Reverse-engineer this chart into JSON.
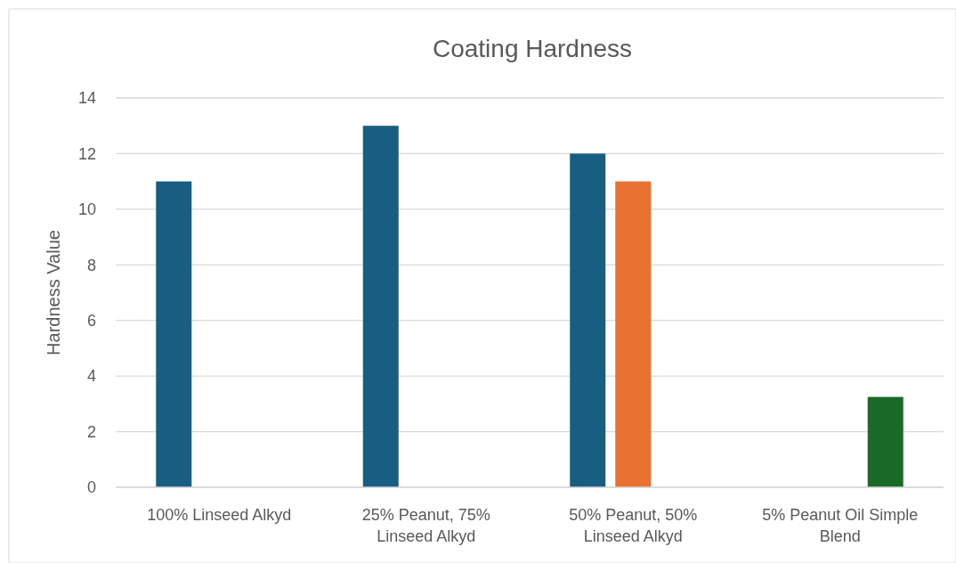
{
  "chart_data": {
    "type": "bar",
    "title": "Coating Hardness",
    "ylabel": "Hardness Value",
    "categories": [
      "100% Linseed Alkyd",
      "25% Peanut, 75% Linseed Alkyd",
      "50% Peanut, 50% Linseed Alkyd",
      "5% Peanut Oil Simple Blend"
    ],
    "series": [
      {
        "color": "#175e82",
        "values": [
          11,
          13,
          12,
          null
        ]
      },
      {
        "color": "#e97132",
        "values": [
          null,
          null,
          11,
          null
        ]
      },
      {
        "color": "#1b6b28",
        "values": [
          null,
          null,
          null,
          3.25
        ]
      }
    ],
    "ylim": [
      0,
      14
    ],
    "yticks": [
      0,
      2,
      4,
      6,
      8,
      10,
      12,
      14
    ],
    "grid": "y"
  }
}
